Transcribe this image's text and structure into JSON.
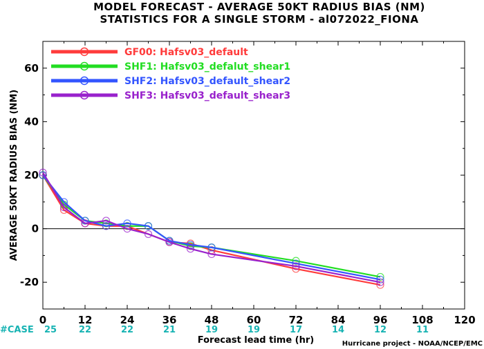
{
  "chart_data": {
    "type": "line",
    "title_line1": "MODEL FORECAST - AVERAGE 50KT RADIUS BIAS (NM)",
    "title_line2": "STATISTICS FOR A SINGLE STORM - al072022_FIONA",
    "xlabel": "Forecast lead time (hr)",
    "ylabel": "AVERAGE 50KT RADIUS BIAS (NM)",
    "xlim": [
      0,
      120
    ],
    "ylim": [
      -30,
      70
    ],
    "x_ticks": [
      0,
      12,
      24,
      36,
      48,
      60,
      72,
      84,
      96,
      108,
      120
    ],
    "y_ticks": [
      -20,
      0,
      20,
      40,
      60
    ],
    "case_label": "#CASE",
    "case_counts": [
      25,
      22,
      22,
      21,
      19,
      19,
      17,
      14,
      12,
      11
    ],
    "credit": "Hurricane project - NOAA/NCEP/EMC",
    "series": [
      {
        "name": "GF00: Hafsv03_default",
        "color": "#ff3b3b",
        "x": [
          0,
          6,
          12,
          18,
          24,
          30,
          36,
          42,
          48,
          72,
          96
        ],
        "y": [
          20,
          7,
          2,
          1,
          1,
          null,
          -5,
          -5.5,
          -8,
          -15,
          -21
        ]
      },
      {
        "name": "SHF1: Hafsv03_defalut_shear1",
        "color": "#22dd22",
        "x": [
          0,
          6,
          12,
          18,
          24,
          30,
          36,
          42,
          48,
          72,
          96
        ],
        "y": [
          20,
          9,
          3,
          2,
          1,
          1,
          -4.5,
          -6.5,
          -7,
          -12,
          -18
        ]
      },
      {
        "name": "SHF2: Hafsv03_default_shear2",
        "color": "#3355ff",
        "x": [
          0,
          6,
          12,
          18,
          24,
          30,
          36,
          42,
          48,
          72,
          96
        ],
        "y": [
          20,
          10,
          3,
          1,
          2,
          1,
          -4.5,
          -6,
          -7,
          -13,
          -19
        ]
      },
      {
        "name": "SHF3: Hafsv03_default_shear3",
        "color": "#9922cc",
        "x": [
          0,
          6,
          12,
          18,
          24,
          30,
          36,
          42,
          48,
          72,
          96
        ],
        "y": [
          21,
          8,
          2,
          3,
          0,
          -2,
          -5,
          -7.5,
          -9.5,
          -14,
          -20
        ]
      }
    ]
  }
}
